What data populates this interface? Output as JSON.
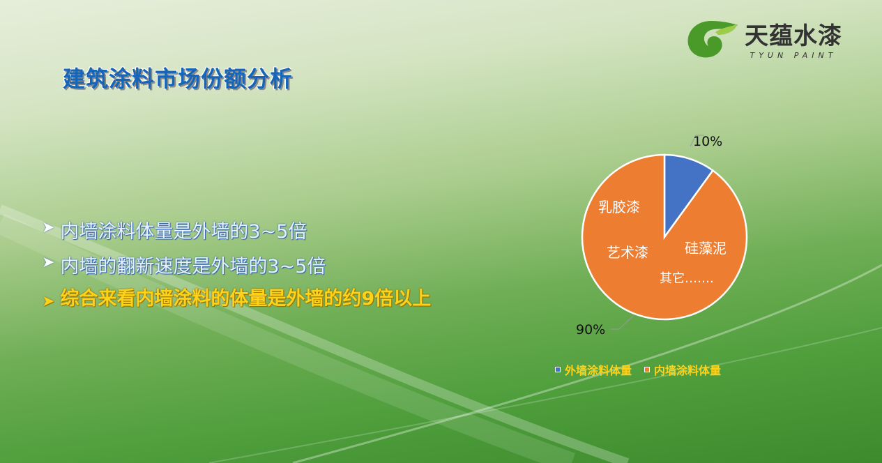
{
  "title": "建筑涂料市场份额分析",
  "logo": {
    "name": "天蕴水漆",
    "subtitle": "TYUN PAINT"
  },
  "bullets": [
    {
      "text": "内墙涂料体量是外墙的3~5倍"
    },
    {
      "text": "内墙的翻新速度是外墙的3~5倍"
    },
    {
      "text": "综合来看内墙涂料的体量是外墙的约9倍以上"
    }
  ],
  "chart_data": {
    "type": "pie",
    "categories": [
      "外墙涂料体量",
      "内墙涂料体量"
    ],
    "values": [
      10,
      90
    ],
    "data_labels": [
      "10%",
      "90%"
    ],
    "colors": [
      "#4472c4",
      "#ed7d31"
    ],
    "slice_annotations": [
      "乳胶漆",
      "艺术漆",
      "硅藻泥",
      "其它……."
    ],
    "legend": "bottom"
  }
}
